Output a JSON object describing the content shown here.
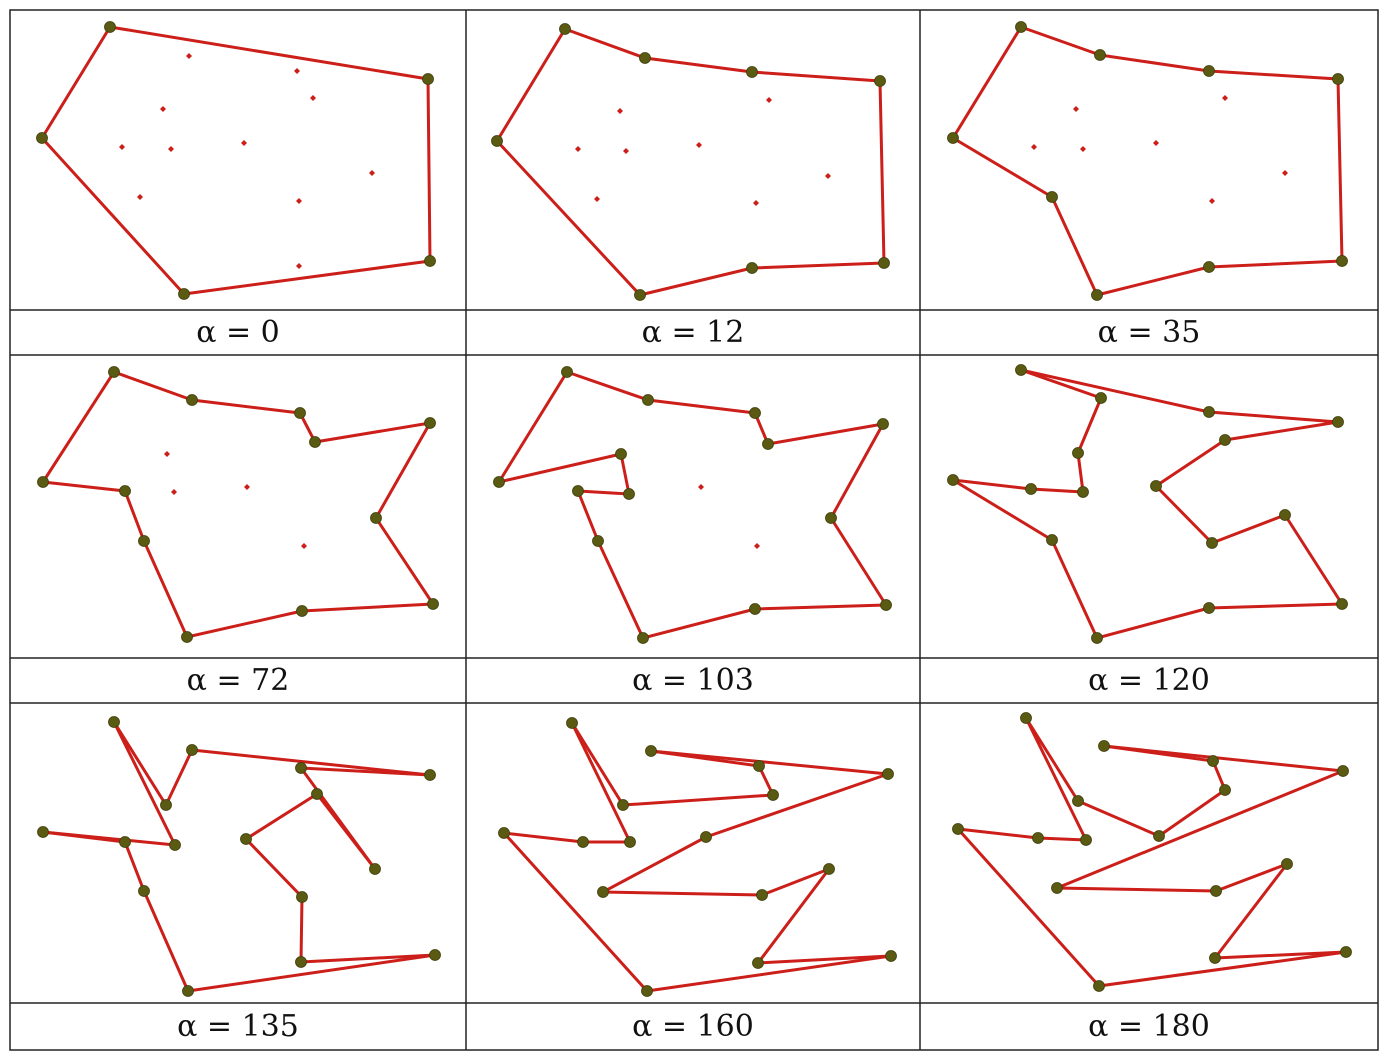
{
  "colors": {
    "line": "#cc1f1a",
    "vertex": "#5a5a12",
    "interior_point": "#cc1f1a",
    "border": "#222222"
  },
  "panels": [
    {
      "caption": "α = 0",
      "polygon": [
        [
          110,
          27
        ],
        [
          428,
          79
        ],
        [
          430,
          261
        ],
        [
          184,
          294
        ],
        [
          42,
          138
        ]
      ],
      "interior": [
        [
          189,
          56
        ],
        [
          297,
          71
        ],
        [
          313,
          98
        ],
        [
          163,
          109
        ],
        [
          122,
          147
        ],
        [
          171,
          149
        ],
        [
          244,
          143
        ],
        [
          372,
          173
        ],
        [
          140,
          197
        ],
        [
          299,
          201
        ],
        [
          299,
          266
        ]
      ]
    },
    {
      "caption": "α = 12",
      "polygon": [
        [
          565,
          29
        ],
        [
          645,
          58
        ],
        [
          752,
          72
        ],
        [
          880,
          81
        ],
        [
          884,
          263
        ],
        [
          752,
          268
        ],
        [
          640,
          295
        ],
        [
          497,
          141
        ]
      ],
      "interior": [
        [
          769,
          100
        ],
        [
          620,
          111
        ],
        [
          578,
          149
        ],
        [
          626,
          151
        ],
        [
          699,
          145
        ],
        [
          828,
          176
        ],
        [
          597,
          199
        ],
        [
          756,
          203
        ]
      ]
    },
    {
      "caption": "α = 35",
      "polygon": [
        [
          1021,
          27
        ],
        [
          1100,
          55
        ],
        [
          1209,
          71
        ],
        [
          1338,
          79
        ],
        [
          1342,
          261
        ],
        [
          1209,
          267
        ],
        [
          1097,
          295
        ],
        [
          1052,
          197
        ],
        [
          953,
          138
        ]
      ],
      "interior": [
        [
          1225,
          98
        ],
        [
          1076,
          109
        ],
        [
          1034,
          147
        ],
        [
          1083,
          149
        ],
        [
          1156,
          143
        ],
        [
          1285,
          173
        ],
        [
          1212,
          201
        ]
      ]
    },
    {
      "caption": "α = 72",
      "polygon": [
        [
          114,
          372
        ],
        [
          192,
          400
        ],
        [
          300,
          413
        ],
        [
          315,
          442
        ],
        [
          430,
          423
        ],
        [
          376,
          518
        ],
        [
          433,
          604
        ],
        [
          302,
          611
        ],
        [
          187,
          637
        ],
        [
          144,
          541
        ],
        [
          125,
          491
        ],
        [
          43,
          482
        ]
      ],
      "interior": [
        [
          167,
          454
        ],
        [
          174,
          492
        ],
        [
          247,
          487
        ],
        [
          304,
          546
        ]
      ]
    },
    {
      "caption": "α = 103",
      "polygon": [
        [
          567,
          372
        ],
        [
          648,
          400
        ],
        [
          755,
          413
        ],
        [
          768,
          444
        ],
        [
          883,
          424
        ],
        [
          831,
          518
        ],
        [
          886,
          605
        ],
        [
          755,
          609
        ],
        [
          643,
          638
        ],
        [
          598,
          541
        ],
        [
          578,
          491
        ],
        [
          629,
          494
        ],
        [
          621,
          454
        ],
        [
          499,
          482
        ]
      ],
      "interior": [
        [
          701,
          487
        ],
        [
          757,
          546
        ]
      ]
    },
    {
      "caption": "α = 120",
      "polygon": [
        [
          1021,
          370
        ],
        [
          1101,
          398
        ],
        [
          1078,
          453
        ],
        [
          1083,
          492
        ],
        [
          1031,
          489
        ],
        [
          953,
          480
        ],
        [
          1052,
          540
        ],
        [
          1097,
          638
        ],
        [
          1209,
          608
        ],
        [
          1342,
          604
        ],
        [
          1285,
          515
        ],
        [
          1212,
          543
        ],
        [
          1156,
          486
        ],
        [
          1225,
          440
        ],
        [
          1338,
          422
        ],
        [
          1209,
          412
        ]
      ],
      "interior": []
    },
    {
      "caption": "α = 135",
      "polygon": [
        [
          114,
          722
        ],
        [
          166,
          805
        ],
        [
          192,
          750
        ],
        [
          430,
          775
        ],
        [
          301,
          768
        ],
        [
          375,
          869
        ],
        [
          317,
          794
        ],
        [
          246,
          839
        ],
        [
          302,
          897
        ],
        [
          301,
          962
        ],
        [
          435,
          955
        ],
        [
          188,
          991
        ],
        [
          144,
          891
        ],
        [
          125,
          842
        ],
        [
          43,
          832
        ],
        [
          175,
          845
        ]
      ],
      "interior": []
    },
    {
      "caption": "α = 160",
      "polygon": [
        [
          572,
          723
        ],
        [
          623,
          805
        ],
        [
          773,
          795
        ],
        [
          759,
          766
        ],
        [
          651,
          751
        ],
        [
          888,
          774
        ],
        [
          706,
          837
        ],
        [
          603,
          892
        ],
        [
          762,
          895
        ],
        [
          829,
          869
        ],
        [
          758,
          963
        ],
        [
          891,
          956
        ],
        [
          647,
          991
        ],
        [
          504,
          833
        ],
        [
          583,
          842
        ],
        [
          630,
          842
        ]
      ],
      "interior": []
    },
    {
      "caption": "α = 180",
      "polygon": [
        [
          1026,
          718
        ],
        [
          1078,
          801
        ],
        [
          1159,
          836
        ],
        [
          1225,
          790
        ],
        [
          1213,
          761
        ],
        [
          1104,
          746
        ],
        [
          1343,
          771
        ],
        [
          1057,
          888
        ],
        [
          1216,
          891
        ],
        [
          1287,
          864
        ],
        [
          1215,
          958
        ],
        [
          1346,
          952
        ],
        [
          1099,
          986
        ],
        [
          958,
          829
        ],
        [
          1038,
          838
        ],
        [
          1086,
          840
        ]
      ],
      "interior": []
    }
  ]
}
